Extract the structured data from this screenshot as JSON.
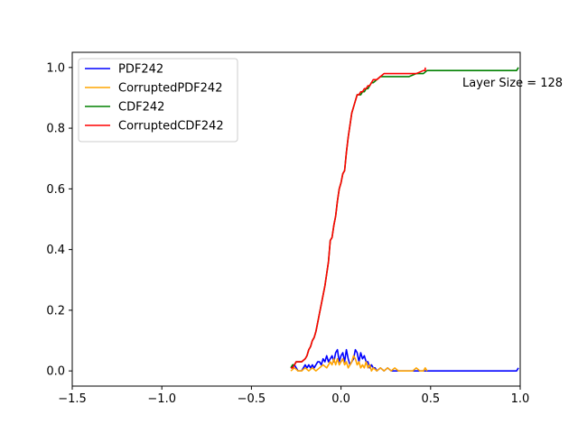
{
  "chart_data": {
    "type": "line",
    "title": "",
    "xlabel": "",
    "ylabel": "",
    "xlim": [
      -1.5,
      1.0
    ],
    "ylim": [
      -0.05,
      1.05
    ],
    "x_ticks": [
      -1.5,
      -1.0,
      -0.5,
      0.0,
      0.5,
      1.0
    ],
    "x_tick_labels": [
      "−1.5",
      "−1.0",
      "−0.5",
      "0.0",
      "0.5",
      "1.0"
    ],
    "y_ticks": [
      0.0,
      0.2,
      0.4,
      0.6,
      0.8,
      1.0
    ],
    "y_tick_labels": [
      "0.0",
      "0.2",
      "0.4",
      "0.6",
      "0.8",
      "1.0"
    ],
    "grid": false,
    "legend_position": "top-left",
    "annotation": "Layer Size = 128",
    "series": [
      {
        "name": "PDF242",
        "color": "#0000ff",
        "x": [
          -0.28,
          -0.26,
          -0.24,
          -0.22,
          -0.2,
          -0.19,
          -0.18,
          -0.17,
          -0.16,
          -0.15,
          -0.14,
          -0.13,
          -0.12,
          -0.11,
          -0.1,
          -0.09,
          -0.08,
          -0.07,
          -0.06,
          -0.05,
          -0.04,
          -0.03,
          -0.02,
          -0.01,
          0.0,
          0.01,
          0.02,
          0.03,
          0.04,
          0.05,
          0.06,
          0.07,
          0.08,
          0.09,
          0.1,
          0.11,
          0.12,
          0.13,
          0.14,
          0.15,
          0.16,
          0.17,
          0.18,
          0.19,
          0.2,
          0.22,
          0.24,
          0.26,
          0.28,
          0.3,
          0.32,
          0.34,
          0.36,
          0.38,
          0.4,
          0.42,
          0.44,
          0.46,
          0.47,
          0.48,
          0.5,
          0.6,
          0.7,
          0.8,
          0.9,
          0.98,
          0.99
        ],
        "y": [
          0.01,
          0.02,
          0.0,
          0.0,
          0.02,
          0.01,
          0.02,
          0.01,
          0.02,
          0.01,
          0.02,
          0.03,
          0.03,
          0.02,
          0.04,
          0.03,
          0.05,
          0.03,
          0.04,
          0.05,
          0.03,
          0.06,
          0.07,
          0.03,
          0.05,
          0.06,
          0.03,
          0.07,
          0.04,
          0.02,
          0.03,
          0.04,
          0.07,
          0.06,
          0.03,
          0.06,
          0.04,
          0.05,
          0.03,
          0.03,
          0.01,
          0.02,
          0.01,
          0.01,
          0.0,
          0.01,
          0.0,
          0.01,
          0.0,
          0.0,
          0.0,
          0.0,
          0.0,
          0.0,
          0.0,
          0.0,
          0.0,
          0.0,
          0.0,
          0.0,
          0.0,
          0.0,
          0.0,
          0.0,
          0.0,
          0.0,
          0.01
        ]
      },
      {
        "name": "CorruptedPDF242",
        "color": "#ffa500",
        "x": [
          -0.28,
          -0.26,
          -0.24,
          -0.22,
          -0.2,
          -0.18,
          -0.16,
          -0.14,
          -0.12,
          -0.1,
          -0.08,
          -0.06,
          -0.05,
          -0.04,
          -0.03,
          -0.02,
          -0.01,
          0.0,
          0.01,
          0.02,
          0.03,
          0.04,
          0.05,
          0.06,
          0.07,
          0.08,
          0.09,
          0.1,
          0.11,
          0.12,
          0.13,
          0.14,
          0.15,
          0.16,
          0.17,
          0.18,
          0.2,
          0.22,
          0.24,
          0.26,
          0.28,
          0.3,
          0.32,
          0.34,
          0.36,
          0.38,
          0.4,
          0.42,
          0.44,
          0.46,
          0.47,
          0.48
        ],
        "y": [
          0.0,
          0.01,
          0.0,
          0.0,
          0.01,
          0.0,
          0.01,
          0.0,
          0.01,
          0.02,
          0.01,
          0.03,
          0.02,
          0.04,
          0.02,
          0.04,
          0.02,
          0.03,
          0.04,
          0.02,
          0.03,
          0.01,
          0.02,
          0.03,
          0.05,
          0.04,
          0.02,
          0.03,
          0.01,
          0.02,
          0.01,
          0.03,
          0.01,
          0.02,
          0.0,
          0.01,
          0.0,
          0.01,
          0.0,
          0.01,
          0.0,
          0.01,
          0.0,
          0.0,
          0.0,
          0.0,
          0.0,
          0.01,
          0.0,
          0.0,
          0.01,
          0.0
        ]
      },
      {
        "name": "CDF242",
        "color": "#008000",
        "x": [
          -0.28,
          -0.27,
          -0.26,
          -0.25,
          -0.24,
          -0.22,
          -0.2,
          -0.19,
          -0.18,
          -0.17,
          -0.16,
          -0.15,
          -0.14,
          -0.13,
          -0.12,
          -0.11,
          -0.1,
          -0.09,
          -0.08,
          -0.07,
          -0.06,
          -0.05,
          -0.04,
          -0.03,
          -0.02,
          -0.01,
          0.0,
          0.01,
          0.02,
          0.03,
          0.04,
          0.05,
          0.06,
          0.07,
          0.08,
          0.09,
          0.1,
          0.11,
          0.12,
          0.13,
          0.14,
          0.15,
          0.16,
          0.17,
          0.18,
          0.2,
          0.22,
          0.24,
          0.26,
          0.28,
          0.3,
          0.34,
          0.38,
          0.42,
          0.46,
          0.48,
          0.5,
          0.6,
          0.7,
          0.8,
          0.9,
          0.98,
          0.99
        ],
        "y": [
          0.01,
          0.02,
          0.02,
          0.03,
          0.03,
          0.03,
          0.04,
          0.05,
          0.07,
          0.08,
          0.1,
          0.11,
          0.13,
          0.16,
          0.19,
          0.22,
          0.25,
          0.28,
          0.32,
          0.36,
          0.43,
          0.44,
          0.48,
          0.51,
          0.56,
          0.6,
          0.62,
          0.65,
          0.66,
          0.72,
          0.77,
          0.81,
          0.85,
          0.87,
          0.89,
          0.91,
          0.91,
          0.91,
          0.92,
          0.92,
          0.93,
          0.93,
          0.94,
          0.95,
          0.95,
          0.96,
          0.97,
          0.97,
          0.97,
          0.97,
          0.97,
          0.97,
          0.97,
          0.98,
          0.98,
          0.99,
          0.99,
          0.99,
          0.99,
          0.99,
          0.99,
          0.99,
          1.0
        ]
      },
      {
        "name": "CorruptedCDF242",
        "color": "#ff0000",
        "x": [
          -0.28,
          -0.27,
          -0.26,
          -0.25,
          -0.24,
          -0.22,
          -0.2,
          -0.19,
          -0.18,
          -0.17,
          -0.16,
          -0.15,
          -0.14,
          -0.13,
          -0.12,
          -0.11,
          -0.1,
          -0.09,
          -0.08,
          -0.07,
          -0.06,
          -0.05,
          -0.04,
          -0.03,
          -0.02,
          -0.01,
          0.0,
          0.01,
          0.02,
          0.03,
          0.04,
          0.05,
          0.06,
          0.07,
          0.08,
          0.09,
          0.1,
          0.11,
          0.12,
          0.13,
          0.14,
          0.15,
          0.16,
          0.17,
          0.18,
          0.2,
          0.22,
          0.24,
          0.26,
          0.28,
          0.3,
          0.34,
          0.38,
          0.42,
          0.46,
          0.47,
          0.47
        ],
        "y": [
          0.01,
          0.01,
          0.02,
          0.03,
          0.03,
          0.03,
          0.04,
          0.05,
          0.07,
          0.08,
          0.1,
          0.11,
          0.13,
          0.16,
          0.19,
          0.22,
          0.25,
          0.28,
          0.32,
          0.36,
          0.43,
          0.44,
          0.48,
          0.51,
          0.56,
          0.6,
          0.62,
          0.65,
          0.66,
          0.72,
          0.77,
          0.81,
          0.85,
          0.87,
          0.89,
          0.91,
          0.91,
          0.92,
          0.92,
          0.93,
          0.93,
          0.94,
          0.94,
          0.95,
          0.96,
          0.96,
          0.97,
          0.98,
          0.98,
          0.98,
          0.98,
          0.98,
          0.98,
          0.98,
          0.99,
          0.99,
          1.0
        ]
      }
    ]
  }
}
